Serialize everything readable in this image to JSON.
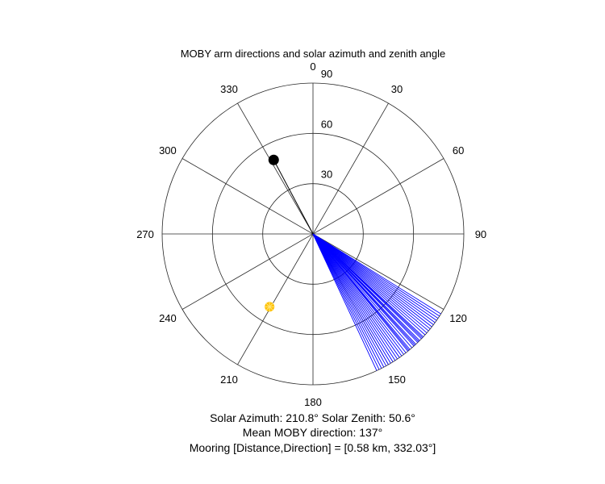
{
  "chart_data": {
    "type": "polar",
    "title": "MOBY arm directions and solar azimuth and zenith angle",
    "theta_zero": "top",
    "theta_direction": "clockwise",
    "theta_ticks": [
      0,
      30,
      60,
      90,
      120,
      150,
      180,
      210,
      240,
      270,
      300,
      330
    ],
    "theta_tick_labels": [
      "0",
      "30",
      "60",
      "90",
      "120",
      "150",
      "180",
      "210",
      "240",
      "270",
      "300",
      "330"
    ],
    "r_ticks": [
      30,
      60,
      90
    ],
    "r_tick_labels": [
      "30",
      "60",
      "90"
    ],
    "rlim": [
      0,
      90
    ],
    "grid": true,
    "series": [
      {
        "name": "MOBY arm directions",
        "kind": "rays",
        "color": "#0000ff",
        "r": 90,
        "theta": [
          122,
          123,
          124,
          125,
          126,
          127,
          128,
          129,
          130,
          131,
          132,
          133,
          133.5,
          134,
          135,
          135.5,
          136,
          137,
          137.5,
          138,
          139,
          140,
          140.5,
          141,
          142,
          143,
          144,
          145,
          146,
          147,
          148,
          149,
          150,
          151,
          152,
          153,
          154,
          155
        ]
      },
      {
        "name": "Mooring",
        "kind": "marker",
        "color": "#000000",
        "theta": 332.03,
        "r": 50,
        "line_color": "#000000"
      },
      {
        "name": "Sun",
        "kind": "marker",
        "color": "#ffc000",
        "theta": 210.8,
        "r": 50.6
      }
    ]
  },
  "captions": {
    "solar": "Solar Azimuth: 210.8°    Solar Zenith: 50.6°",
    "mean_direction": "Mean MOBY direction: 137°",
    "mooring": "Mooring [Distance,Direction] = [0.58 km, 332.03°]"
  }
}
